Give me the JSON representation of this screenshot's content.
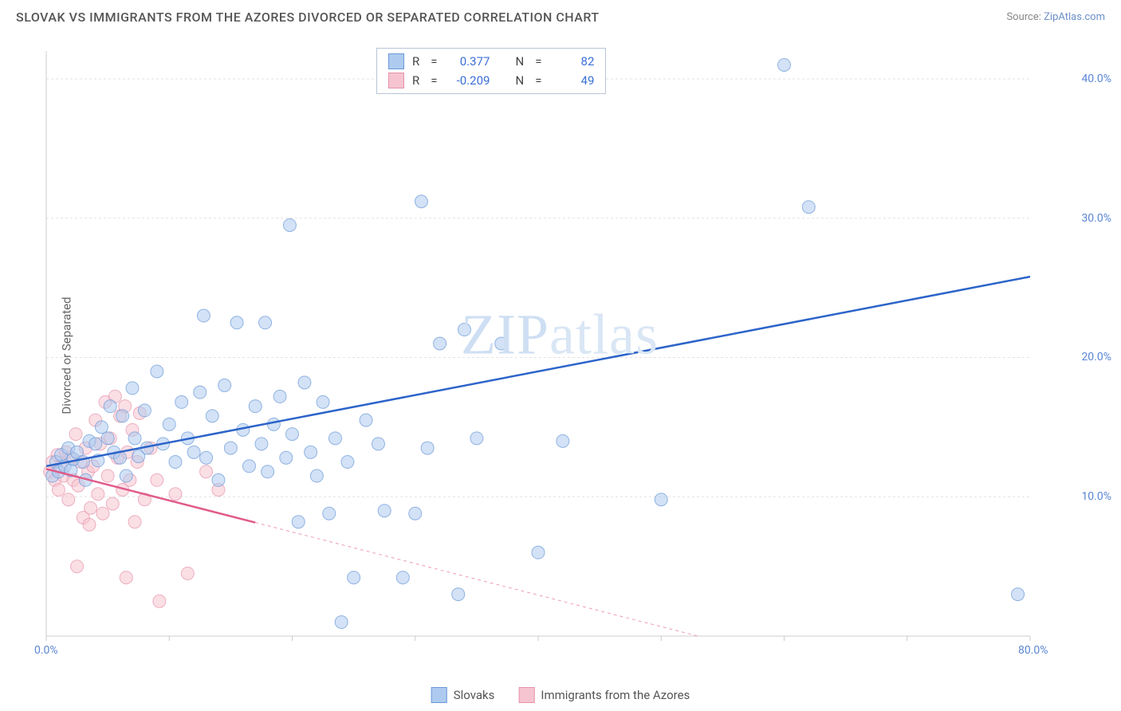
{
  "title": "SLOVAK VS IMMIGRANTS FROM THE AZORES DIVORCED OR SEPARATED CORRELATION CHART",
  "source_label": "Source:",
  "source_name": "ZipAtlas.com",
  "y_axis_label": "Divorced or Separated",
  "watermark": "ZIPatlas",
  "chart": {
    "type": "scatter",
    "background_color": "#ffffff",
    "grid_color": "#e2e2e2",
    "axis_color": "#cccccc",
    "tick_label_color": "#5b86d4",
    "xlim": [
      0,
      80
    ],
    "ylim": [
      0,
      42
    ],
    "x_ticks": [
      0,
      10,
      20,
      30,
      40,
      50,
      60,
      70,
      80
    ],
    "x_tick_labels": [
      "0.0%",
      "",
      "",
      "",
      "",
      "",
      "",
      "",
      "80.0%"
    ],
    "y_ticks": [
      10,
      20,
      30,
      40
    ],
    "y_tick_labels": [
      "10.0%",
      "20.0%",
      "30.0%",
      "40.0%"
    ],
    "series": [
      {
        "name": "Slovaks",
        "color_fill": "#aecbef",
        "color_stroke": "#6a98d8",
        "line_color": "#2c64c9",
        "line_width": 2.5,
        "line_dash": "none",
        "marker_radius": 8,
        "marker_opacity": 0.55,
        "r_value": "0.377",
        "n_value": "82",
        "trend": {
          "x1": 0,
          "y1": 12.2,
          "x2": 80,
          "y2": 25.8
        },
        "points": [
          [
            0.5,
            11.5
          ],
          [
            0.8,
            12.5
          ],
          [
            1,
            11.8
          ],
          [
            1.2,
            13
          ],
          [
            1.5,
            12.2
          ],
          [
            1.8,
            13.5
          ],
          [
            2,
            11.9
          ],
          [
            2.2,
            12.7
          ],
          [
            2.5,
            13.2
          ],
          [
            3,
            12.5
          ],
          [
            3.2,
            11.2
          ],
          [
            3.5,
            14
          ],
          [
            4,
            13.8
          ],
          [
            4.2,
            12.6
          ],
          [
            4.5,
            15
          ],
          [
            5,
            14.2
          ],
          [
            5.2,
            16.5
          ],
          [
            5.5,
            13.2
          ],
          [
            6,
            12.8
          ],
          [
            6.2,
            15.8
          ],
          [
            6.5,
            11.5
          ],
          [
            7,
            17.8
          ],
          [
            7.2,
            14.2
          ],
          [
            7.5,
            12.9
          ],
          [
            8,
            16.2
          ],
          [
            8.2,
            13.5
          ],
          [
            9,
            19
          ],
          [
            9.5,
            13.8
          ],
          [
            10,
            15.2
          ],
          [
            10.5,
            12.5
          ],
          [
            11,
            16.8
          ],
          [
            11.5,
            14.2
          ],
          [
            12,
            13.2
          ],
          [
            12.5,
            17.5
          ],
          [
            12.8,
            23
          ],
          [
            13,
            12.8
          ],
          [
            13.5,
            15.8
          ],
          [
            14,
            11.2
          ],
          [
            14.5,
            18
          ],
          [
            15,
            13.5
          ],
          [
            15.5,
            22.5
          ],
          [
            16,
            14.8
          ],
          [
            16.5,
            12.2
          ],
          [
            17,
            16.5
          ],
          [
            17.5,
            13.8
          ],
          [
            17.8,
            22.5
          ],
          [
            18,
            11.8
          ],
          [
            18.5,
            15.2
          ],
          [
            19,
            17.2
          ],
          [
            19.5,
            12.8
          ],
          [
            19.8,
            29.5
          ],
          [
            20,
            14.5
          ],
          [
            20.5,
            8.2
          ],
          [
            21,
            18.2
          ],
          [
            21.5,
            13.2
          ],
          [
            22,
            11.5
          ],
          [
            22.5,
            16.8
          ],
          [
            23,
            8.8
          ],
          [
            23.5,
            14.2
          ],
          [
            24,
            1
          ],
          [
            24.5,
            12.5
          ],
          [
            25,
            4.2
          ],
          [
            26,
            15.5
          ],
          [
            27,
            13.8
          ],
          [
            27.5,
            9
          ],
          [
            29,
            4.2
          ],
          [
            30,
            8.8
          ],
          [
            30.5,
            31.2
          ],
          [
            31,
            13.5
          ],
          [
            32,
            21
          ],
          [
            33.5,
            3
          ],
          [
            34,
            22
          ],
          [
            35,
            14.2
          ],
          [
            37,
            21
          ],
          [
            40,
            6
          ],
          [
            42,
            14
          ],
          [
            50,
            9.8
          ],
          [
            60,
            41
          ],
          [
            62,
            30.8
          ],
          [
            79,
            3
          ]
        ]
      },
      {
        "name": "Immigrants from the Azores",
        "color_fill": "#f5c4d0",
        "color_stroke": "#e593ab",
        "line_color": "#e05a8a",
        "line_width": 2.5,
        "line_dash": "4 4",
        "solid_end_x": 17,
        "marker_radius": 8,
        "marker_opacity": 0.55,
        "r_value": "-0.209",
        "n_value": "49",
        "trend": {
          "x1": 0,
          "y1": 12.0,
          "x2": 53,
          "y2": 0
        },
        "points": [
          [
            0.3,
            11.8
          ],
          [
            0.5,
            12.5
          ],
          [
            0.7,
            11.2
          ],
          [
            0.9,
            13
          ],
          [
            1,
            10.5
          ],
          [
            1.2,
            12.2
          ],
          [
            1.4,
            11.5
          ],
          [
            1.6,
            13.2
          ],
          [
            1.8,
            9.8
          ],
          [
            2,
            12.8
          ],
          [
            2.2,
            11.2
          ],
          [
            2.4,
            14.5
          ],
          [
            2.6,
            10.8
          ],
          [
            2.8,
            12.5
          ],
          [
            3,
            8.5
          ],
          [
            3.2,
            13.5
          ],
          [
            3.4,
            11.8
          ],
          [
            3.6,
            9.2
          ],
          [
            3.8,
            12.2
          ],
          [
            4,
            15.5
          ],
          [
            4.2,
            10.2
          ],
          [
            4.4,
            13.8
          ],
          [
            4.6,
            8.8
          ],
          [
            4.8,
            16.8
          ],
          [
            5,
            11.5
          ],
          [
            5.2,
            14.2
          ],
          [
            5.4,
            9.5
          ],
          [
            5.6,
            17.2
          ],
          [
            5.8,
            12.8
          ],
          [
            6,
            15.8
          ],
          [
            6.2,
            10.5
          ],
          [
            6.4,
            16.5
          ],
          [
            6.6,
            13.2
          ],
          [
            6.8,
            11.2
          ],
          [
            7,
            14.8
          ],
          [
            7.2,
            8.2
          ],
          [
            7.4,
            12.5
          ],
          [
            7.6,
            16
          ],
          [
            8,
            9.8
          ],
          [
            8.5,
            13.5
          ],
          [
            9,
            11.2
          ],
          [
            2.5,
            5
          ],
          [
            3.5,
            8
          ],
          [
            6.5,
            4.2
          ],
          [
            9.2,
            2.5
          ],
          [
            10.5,
            10.2
          ],
          [
            11.5,
            4.5
          ],
          [
            13,
            11.8
          ],
          [
            14,
            10.5
          ]
        ]
      }
    ]
  },
  "stats_legend": {
    "r_label": "R",
    "n_label": "N",
    "equals": "="
  },
  "bottom_legend_items": [
    "Slovaks",
    "Immigrants from the Azores"
  ]
}
